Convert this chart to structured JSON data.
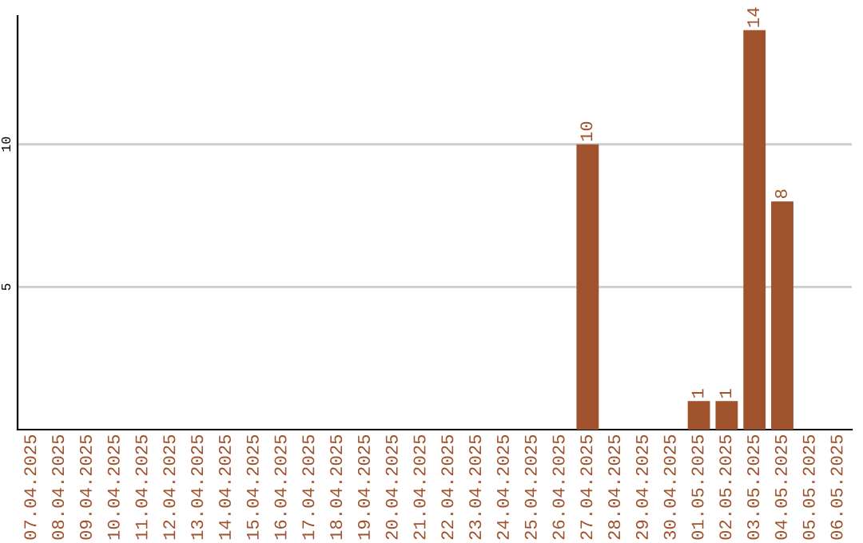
{
  "chart_data": {
    "type": "bar",
    "categories": [
      "07.04.2025",
      "08.04.2025",
      "09.04.2025",
      "10.04.2025",
      "11.04.2025",
      "12.04.2025",
      "13.04.2025",
      "14.04.2025",
      "15.04.2025",
      "16.04.2025",
      "17.04.2025",
      "18.04.2025",
      "19.04.2025",
      "20.04.2025",
      "21.04.2025",
      "22.04.2025",
      "23.04.2025",
      "24.04.2025",
      "25.04.2025",
      "26.04.2025",
      "27.04.2025",
      "28.04.2025",
      "29.04.2025",
      "30.04.2025",
      "01.05.2025",
      "02.05.2025",
      "03.05.2025",
      "04.05.2025",
      "05.05.2025",
      "06.05.2025"
    ],
    "values": [
      0,
      0,
      0,
      0,
      0,
      0,
      0,
      0,
      0,
      0,
      0,
      0,
      0,
      0,
      0,
      0,
      0,
      0,
      0,
      0,
      10,
      0,
      0,
      0,
      1,
      1,
      14,
      8,
      0,
      0
    ],
    "value_labels": [
      null,
      null,
      null,
      null,
      null,
      null,
      null,
      null,
      null,
      null,
      null,
      null,
      null,
      null,
      null,
      null,
      null,
      null,
      null,
      null,
      "10",
      null,
      null,
      null,
      "1",
      "1",
      "14",
      "8",
      null,
      null
    ],
    "color": "#a0522d",
    "ylim": [
      0,
      14.5
    ],
    "yticks": [
      5,
      10
    ],
    "grid": "y",
    "legend": false
  }
}
